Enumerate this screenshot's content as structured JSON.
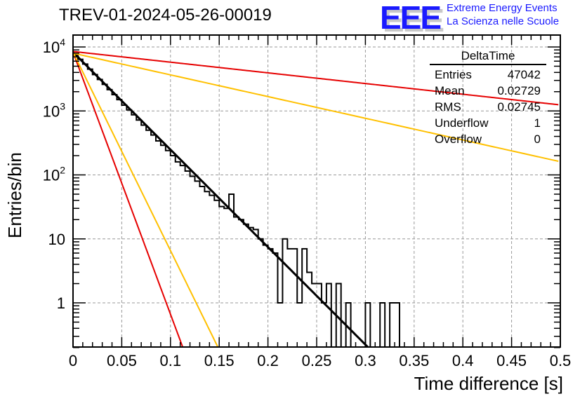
{
  "title": "TREV-01-2024-05-26-00019",
  "logo": {
    "mark": "EEE",
    "line1": "Extreme Energy Events",
    "line2": "La Scienza nelle Scuole",
    "color": "#1a1aff"
  },
  "stats_box": {
    "name": "DeltaTime",
    "rows": [
      {
        "label": "Entries",
        "value": "47042"
      },
      {
        "label": "Mean",
        "value": "0.02729"
      },
      {
        "label": "RMS",
        "value": "0.02745"
      },
      {
        "label": "Underflow",
        "value": "1"
      },
      {
        "label": "Overflow",
        "value": "0"
      }
    ]
  },
  "chart_data": {
    "type": "line",
    "title": "TREV-01-2024-05-26-00019",
    "xlabel": "Time difference [s]",
    "ylabel": "Entries/bin",
    "xlim": [
      0,
      0.5
    ],
    "ylim": [
      0.2,
      14000
    ],
    "yscale": "log",
    "grid": true,
    "x_ticks": [
      "0",
      "0.05",
      "0.1",
      "0.15",
      "0.2",
      "0.25",
      "0.3",
      "0.35",
      "0.4",
      "0.45",
      "0.5"
    ],
    "x_tick_values": [
      0,
      0.05,
      0.1,
      0.15,
      0.2,
      0.25,
      0.3,
      0.35,
      0.4,
      0.45,
      0.5
    ],
    "y_ticks": [
      {
        "value": 10000,
        "base": "10",
        "exp": "4"
      },
      {
        "value": 1000,
        "base": "10",
        "exp": "3"
      },
      {
        "value": 100,
        "base": "10",
        "exp": "2"
      },
      {
        "value": 10,
        "base": "10",
        "exp": ""
      },
      {
        "value": 1,
        "base": "1",
        "exp": ""
      }
    ],
    "histogram": {
      "name": "DeltaTime",
      "bin_width": 0.005,
      "color": "#000000",
      "bin_starts": [
        0,
        0.005,
        0.01,
        0.015,
        0.02,
        0.025,
        0.03,
        0.035,
        0.04,
        0.045,
        0.05,
        0.055,
        0.06,
        0.065,
        0.07,
        0.075,
        0.08,
        0.085,
        0.09,
        0.095,
        0.1,
        0.105,
        0.11,
        0.115,
        0.12,
        0.125,
        0.13,
        0.135,
        0.14,
        0.145,
        0.15,
        0.155,
        0.16,
        0.165,
        0.17,
        0.175,
        0.18,
        0.185,
        0.19,
        0.195,
        0.2,
        0.205,
        0.21,
        0.215,
        0.22,
        0.225,
        0.23,
        0.235,
        0.24,
        0.245,
        0.25,
        0.255,
        0.26,
        0.265,
        0.27,
        0.275,
        0.28,
        0.285,
        0.29,
        0.295,
        0.3,
        0.305,
        0.31,
        0.315,
        0.32,
        0.325,
        0.33
      ],
      "counts": [
        7800,
        6400,
        5400,
        4500,
        3700,
        3100,
        2600,
        2150,
        1800,
        1500,
        1230,
        1040,
        870,
        720,
        600,
        500,
        420,
        340,
        290,
        240,
        200,
        160,
        140,
        115,
        95,
        80,
        66,
        55,
        48,
        40,
        32,
        30,
        50,
        22,
        20,
        17,
        15,
        14,
        10,
        8,
        7,
        6,
        1,
        10,
        7,
        7,
        1,
        7,
        3,
        2,
        2,
        1,
        2,
        0,
        2,
        0,
        1,
        0,
        0,
        0,
        1,
        0,
        0,
        1,
        0,
        1,
        1
      ]
    },
    "fits": [
      {
        "name": "fit",
        "color": "#000000",
        "A": 8300,
        "tau": 0.0285,
        "width": 3
      },
      {
        "name": "red-steep",
        "color": "#e60000",
        "A": 8300,
        "tau": 0.0106,
        "width": 2
      },
      {
        "name": "yellow-steep",
        "color": "#ffc000",
        "A": 8300,
        "tau": 0.014,
        "width": 2
      },
      {
        "name": "red-flat",
        "color": "#e60000",
        "A": 8500,
        "tau": 0.26,
        "width": 2
      },
      {
        "name": "yellow-flat",
        "color": "#ffc000",
        "A": 8000,
        "tau": 0.128,
        "width": 2
      }
    ]
  }
}
